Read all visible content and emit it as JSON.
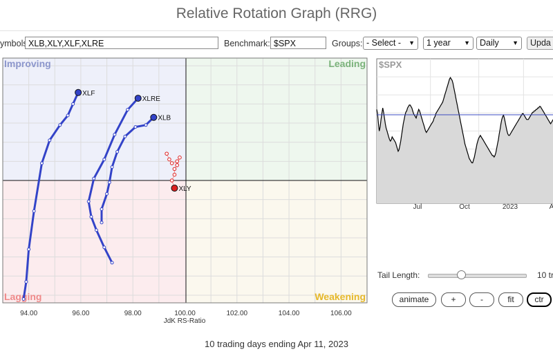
{
  "page": {
    "title": "Relative Rotation Graph (RRG)",
    "footer": "10 trading days ending Apr 11, 2023"
  },
  "toolbar": {
    "symbols_label": "ymbols:",
    "symbols_value": "XLB,XLY,XLF,XLRE",
    "benchmark_label": "Benchmark:",
    "benchmark_value": "$SPX",
    "groups_label": "Groups:",
    "groups_value": "- Select -",
    "period_value": "1 year",
    "frequency_value": "Daily",
    "update_label": "Upda"
  },
  "controls": {
    "tail_length_label": "Tail Length:",
    "tail_length_value": "10 tr",
    "tail_length_fraction": 0.34,
    "buttons": {
      "animate": "animate",
      "zoom_in": "+",
      "zoom_out": "-",
      "fit": "fit",
      "center": "ctr"
    }
  },
  "colors": {
    "improving": "#eef0fa",
    "leading": "#eef7ee",
    "weakening": "#fbf8ee",
    "lagging": "#fcecee",
    "improving_text": "#8c96cc",
    "leading_text": "#7bb37b",
    "weakening_text": "#e6b82a",
    "lagging_text": "#ef8a8a",
    "tail_blue": "#3343c8",
    "tail_red": "#dd2020"
  },
  "chart_data": [
    {
      "type": "scatter",
      "title": "",
      "xlabel": "JdK RS-Ratio",
      "ylabel": "",
      "xlim": [
        93,
        107
      ],
      "ylim": [
        93.6,
        106.4
      ],
      "x_ticks": [
        "94.00",
        "96.00",
        "98.00",
        "100.00",
        "102.00",
        "104.00",
        "106.00"
      ],
      "quadrants": {
        "improving": "Improving",
        "leading": "Leading",
        "weakening": "Weakening",
        "lagging": "Lagging"
      },
      "series": [
        {
          "name": "XLF",
          "color": "#3343c8",
          "x": [
            93.8,
            93.9,
            94.0,
            94.2,
            94.5,
            94.8,
            95.2,
            95.5,
            95.7,
            95.9
          ],
          "y": [
            93.8,
            94.7,
            96.4,
            98.4,
            100.9,
            102.1,
            102.9,
            103.4,
            104.0,
            104.6
          ]
        },
        {
          "name": "XLRE",
          "color": "#3343c8",
          "x": [
            97.2,
            96.9,
            96.6,
            96.4,
            96.3,
            96.5,
            96.9,
            97.3,
            97.8,
            98.2
          ],
          "y": [
            95.7,
            96.5,
            97.4,
            98.1,
            98.9,
            100.1,
            101.1,
            102.4,
            103.7,
            104.3
          ]
        },
        {
          "name": "XLB",
          "color": "#3343c8",
          "x": [
            96.8,
            96.8,
            97.0,
            97.1,
            97.2,
            97.4,
            97.7,
            98.1,
            98.5,
            98.8
          ],
          "y": [
            97.8,
            98.5,
            99.3,
            99.9,
            100.7,
            101.5,
            102.3,
            102.8,
            102.9,
            103.3
          ]
        },
        {
          "name": "XLY",
          "color": "#dd2020",
          "x": [
            99.3,
            99.4,
            99.5,
            99.7,
            99.8,
            99.7,
            99.6,
            99.6,
            99.5,
            99.6
          ],
          "y": [
            101.4,
            101.1,
            100.9,
            101.0,
            101.2,
            100.8,
            100.6,
            100.3,
            100.0,
            99.6
          ]
        }
      ]
    },
    {
      "type": "line",
      "title": "$SPX",
      "x_ticks": [
        "Jul",
        "Oct",
        "2023",
        "A"
      ],
      "values": [
        65,
        62,
        55,
        50,
        53,
        58,
        62,
        66,
        63,
        59,
        55,
        52,
        50,
        48,
        46,
        44,
        43,
        44,
        46,
        45,
        44,
        43,
        42,
        40,
        38,
        36,
        37,
        40,
        43,
        47,
        51,
        55,
        58,
        61,
        63,
        64,
        66,
        67,
        68,
        68,
        67,
        66,
        64,
        62,
        61,
        60,
        59,
        61,
        63,
        65,
        64,
        62,
        60,
        58,
        56,
        54,
        52,
        50,
        49,
        50,
        51,
        52,
        53,
        54,
        55,
        56,
        57,
        59,
        60,
        62,
        63,
        64,
        65,
        66,
        67,
        68,
        69,
        70,
        72,
        74,
        76,
        78,
        80,
        82,
        84,
        86,
        87,
        86,
        85,
        83,
        80,
        77,
        74,
        71,
        68,
        65,
        62,
        59,
        56,
        53,
        50,
        47,
        44,
        41,
        39,
        37,
        35,
        33,
        31,
        30,
        29,
        28,
        28,
        30,
        32,
        35,
        38,
        41,
        43,
        45,
        46,
        47,
        46,
        45,
        44,
        43,
        42,
        41,
        40,
        39,
        38,
        37,
        36,
        35,
        34,
        33,
        33,
        32,
        33,
        35,
        38,
        41,
        44,
        48,
        51,
        55,
        58,
        60,
        61,
        59,
        56,
        53,
        50,
        48,
        47,
        47,
        48,
        49,
        50,
        51,
        52,
        53,
        54,
        55,
        56,
        57,
        58,
        59,
        60,
        61,
        62,
        62,
        61,
        60,
        59,
        58,
        58,
        58,
        59,
        60,
        61,
        62,
        63,
        63,
        64,
        64,
        65,
        65,
        66,
        66,
        67,
        67,
        66,
        65,
        64,
        63,
        62,
        61,
        60,
        59,
        58,
        57,
        56,
        55,
        56,
        57,
        58,
        59,
        60,
        61
      ],
      "ylim": [
        0,
        100
      ]
    }
  ]
}
